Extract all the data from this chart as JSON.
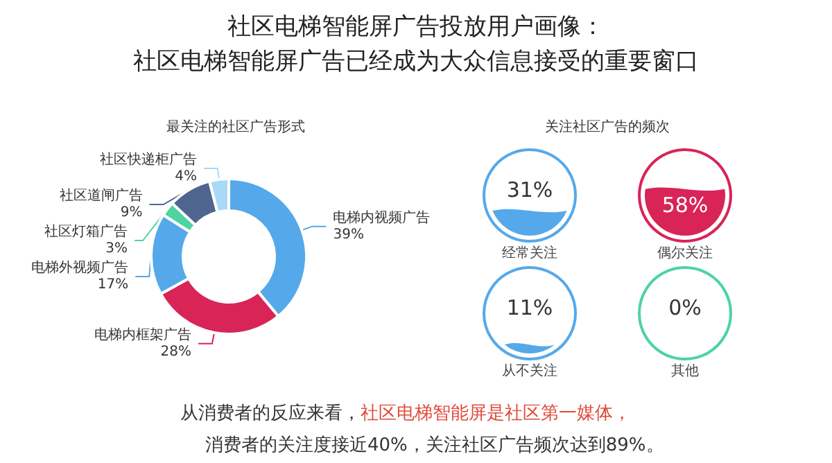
{
  "chart_data": [
    {
      "type": "other",
      "title": "社区电梯智能屏广告投放用户画像：",
      "subtitle": "社区电梯智能屏广告已经成为大众信息接受的重要窗口",
      "annotations": [
        "从消费者的反应来看，",
        "社区电梯智能屏是社区第一媒体，",
        "消费者的关注度接近40%，关注社区广告频次达到89%。"
      ]
    },
    {
      "type": "donut",
      "title": "最关注的社区广告形式",
      "categories": [
        "电梯内视频广告",
        "电梯内框架广告",
        "电梯外视频广告",
        "社区灯箱广告",
        "社区道闸广告",
        "社区快递柜广告"
      ],
      "values": [
        39,
        28,
        17,
        3,
        9,
        4
      ],
      "value_labels": [
        "39%",
        "28%",
        "17%",
        "3%",
        "9%",
        "4%"
      ],
      "colors": [
        "#55a9ea",
        "#d92457",
        "#55a9ea",
        "#4dd4a0",
        "#4f6590",
        "#a8d9f8"
      ]
    },
    {
      "type": "other",
      "title": "关注社区广告的频次",
      "categories": [
        "经常关注",
        "偶尔关注",
        "从不关注",
        "其他"
      ],
      "values": [
        31,
        58,
        11,
        0
      ],
      "value_labels": [
        "31%",
        "58%",
        "11%",
        "0%"
      ],
      "colors": [
        "#55a9ea",
        "#d92457",
        "#55a9ea",
        "#4dd4a0"
      ]
    }
  ]
}
